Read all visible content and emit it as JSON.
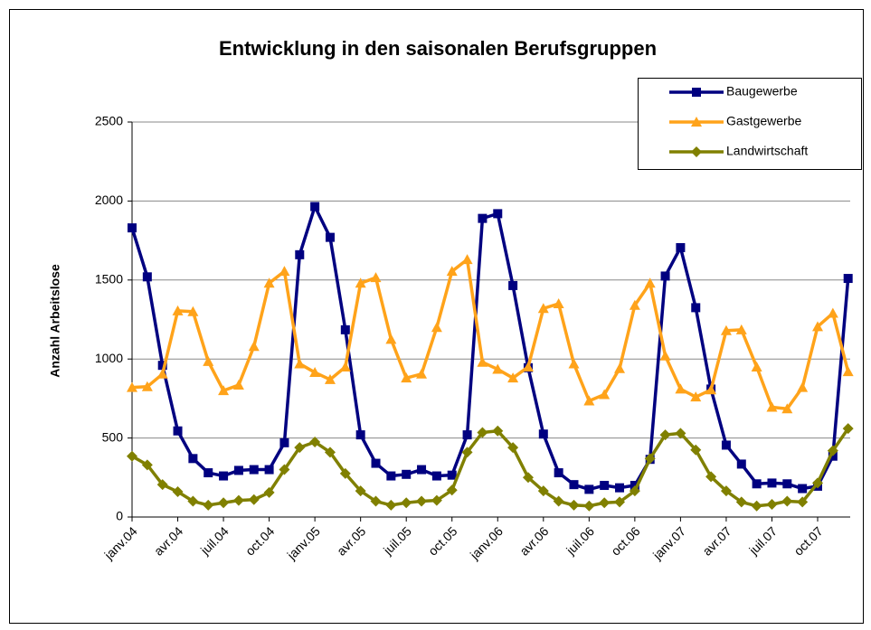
{
  "chart_data": {
    "type": "line",
    "title": "Entwicklung in den saisonalen Berufsgruppen",
    "y_label": "Anzahl Arbeitslose",
    "categories": [
      "janv.04",
      null,
      null,
      "avr.04",
      null,
      null,
      "juil.04",
      null,
      null,
      "oct.04",
      null,
      null,
      "janv.05",
      null,
      null,
      "avr.05",
      null,
      null,
      "juil.05",
      null,
      null,
      "oct.05",
      null,
      null,
      "janv.06",
      null,
      null,
      "avr.06",
      null,
      null,
      "juil.06",
      null,
      null,
      "oct.06",
      null,
      null,
      "janv.07",
      null,
      null,
      "avr.07",
      null,
      null,
      "juil.07",
      null,
      null,
      "oct.07",
      null,
      null
    ],
    "series": [
      {
        "name": "Baugewerbe",
        "color": "#000080",
        "marker": "square",
        "values": [
          1830,
          1520,
          960,
          545,
          370,
          280,
          260,
          295,
          300,
          300,
          470,
          1660,
          1965,
          1770,
          1185,
          520,
          340,
          260,
          270,
          300,
          260,
          265,
          520,
          1890,
          1920,
          1465,
          945,
          525,
          280,
          205,
          175,
          200,
          185,
          200,
          365,
          1525,
          1705,
          1325,
          810,
          455,
          335,
          210,
          215,
          210,
          180,
          195,
          385,
          1510
        ]
      },
      {
        "name": "Gastgewerbe",
        "color": "#ffa31a",
        "marker": "triangle",
        "values": [
          820,
          825,
          905,
          1305,
          1300,
          985,
          800,
          835,
          1080,
          1480,
          1555,
          970,
          915,
          870,
          950,
          1480,
          1515,
          1125,
          880,
          905,
          1200,
          1555,
          1630,
          980,
          935,
          880,
          950,
          1320,
          1350,
          970,
          735,
          775,
          940,
          1340,
          1480,
          1020,
          810,
          760,
          805,
          1180,
          1185,
          950,
          695,
          685,
          820,
          1205,
          1290,
          920
        ]
      },
      {
        "name": "Landwirtschaft",
        "color": "#808000",
        "marker": "diamond",
        "values": [
          385,
          330,
          205,
          160,
          100,
          75,
          90,
          105,
          110,
          155,
          300,
          440,
          475,
          410,
          275,
          165,
          100,
          75,
          90,
          100,
          105,
          170,
          410,
          535,
          545,
          440,
          250,
          165,
          100,
          75,
          70,
          90,
          95,
          165,
          370,
          520,
          530,
          425,
          255,
          165,
          95,
          70,
          80,
          100,
          95,
          215,
          420,
          560
        ]
      }
    ],
    "ylim": [
      0,
      2500
    ],
    "yticks": [
      0,
      500,
      1000,
      1500,
      2000,
      2500
    ],
    "grid": true,
    "legend": "top-right"
  }
}
